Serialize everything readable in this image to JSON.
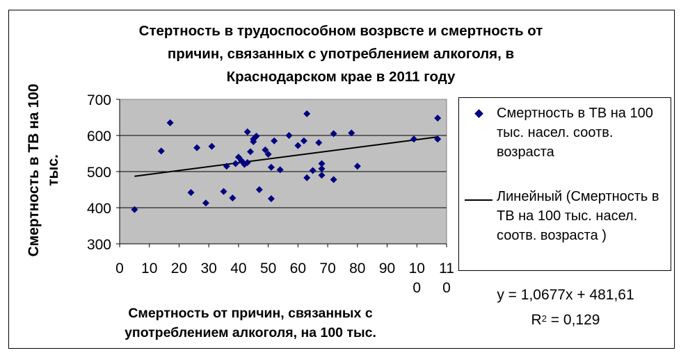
{
  "chart_data": {
    "type": "scatter",
    "title": "Стертность в трудоспособном возрвсте и смертность от\nпричин, связанных с употреблением алкоголя, в\nКраснодарском крае в 2011 году",
    "xlabel": "Смертность от причин, связанных с употреблением алкоголя, на 100 тыс.",
    "ylabel": "Смертность в ТВ на 100 тыс.",
    "xlim": [
      0,
      110
    ],
    "ylim": [
      300,
      700
    ],
    "x_ticks": [
      "0",
      "10",
      "20",
      "30",
      "40",
      "50",
      "60",
      "70",
      "80",
      "90",
      "10\n0",
      "11\n0"
    ],
    "x_tick_values": [
      0,
      10,
      20,
      30,
      40,
      50,
      60,
      70,
      80,
      90,
      100,
      110
    ],
    "y_ticks": [
      "300",
      "400",
      "500",
      "600",
      "700"
    ],
    "y_tick_values": [
      300,
      400,
      500,
      600,
      700
    ],
    "grid": "horizontal",
    "plot_background": "#c0c0c0",
    "marker_color": "#000080",
    "trend_color": "#000000",
    "series": [
      {
        "name": "Смертность в ТВ на 100 тыс. насел. соотв. возраста",
        "x": [
          5,
          14,
          17,
          24,
          26,
          29,
          31,
          35,
          36,
          38,
          39,
          40,
          41,
          42,
          43,
          43,
          44,
          45,
          45,
          46,
          47,
          49,
          50,
          51,
          51,
          52,
          54,
          57,
          60,
          62,
          63,
          63,
          65,
          67,
          68,
          68,
          68,
          72,
          72,
          78,
          80,
          99,
          107,
          107
        ],
        "y": [
          395,
          557,
          635,
          442,
          566,
          413,
          570,
          445,
          515,
          427,
          522,
          540,
          530,
          520,
          610,
          525,
          555,
          583,
          590,
          598,
          450,
          560,
          548,
          512,
          425,
          585,
          505,
          600,
          572,
          585,
          660,
          483,
          503,
          580,
          522,
          508,
          490,
          478,
          605,
          607,
          515,
          590,
          590,
          648
        ]
      }
    ],
    "trendline": {
      "name": "Линейный (Смертность в ТВ на 100 тыс. насел. соотв. возраста )",
      "slope": 1.0677,
      "intercept": 481.61,
      "x_range": [
        5,
        107
      ]
    },
    "legend": {
      "placement": "right",
      "marker_entry": "Смертность в ТВ на 100 тыс. насел. соотв. возраста",
      "line_entry": "Линейный (Смертность в ТВ на 100 тыс. насел. соотв. возраста )"
    },
    "equation": "y = 1,0677x + 481,61",
    "r_squared_label": "R",
    "r_squared_exp": "2",
    "r_squared_value": " = 0,129"
  }
}
